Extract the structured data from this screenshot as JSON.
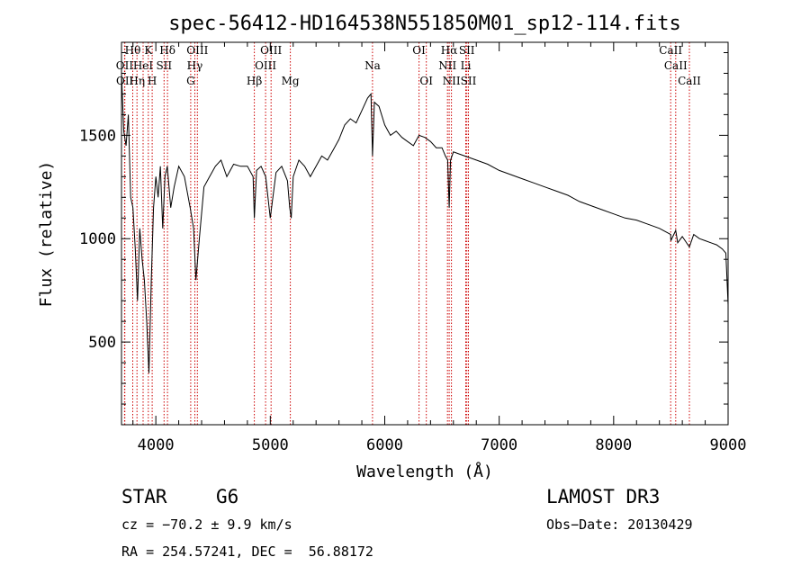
{
  "chart_data": {
    "type": "line",
    "title": "spec-56412-HD164538N551850M01_sp12-114.fits",
    "xlabel": "Wavelength (Å)",
    "ylabel": "Flux (relative)",
    "xlim": [
      3700,
      9000
    ],
    "ylim": [
      100,
      1950
    ],
    "xticks": [
      4000,
      5000,
      6000,
      7000,
      8000,
      9000
    ],
    "yticks": [
      500,
      1000,
      1500
    ],
    "series": [
      {
        "name": "spectrum",
        "x": [
          3700,
          3720,
          3740,
          3760,
          3780,
          3800,
          3820,
          3840,
          3860,
          3880,
          3900,
          3920,
          3940,
          3960,
          3980,
          4000,
          4020,
          4040,
          4060,
          4080,
          4100,
          4130,
          4160,
          4200,
          4250,
          4300,
          4330,
          4350,
          4380,
          4420,
          4470,
          4520,
          4570,
          4620,
          4680,
          4740,
          4800,
          4850,
          4861,
          4880,
          4920,
          4960,
          5000,
          5050,
          5100,
          5150,
          5170,
          5183,
          5200,
          5250,
          5300,
          5350,
          5400,
          5450,
          5500,
          5550,
          5600,
          5650,
          5700,
          5750,
          5800,
          5850,
          5880,
          5893,
          5910,
          5950,
          6000,
          6050,
          6100,
          6150,
          6200,
          6250,
          6300,
          6350,
          6400,
          6450,
          6500,
          6530,
          6550,
          6563,
          6575,
          6600,
          6650,
          6700,
          6750,
          6800,
          6900,
          7000,
          7100,
          7200,
          7300,
          7400,
          7500,
          7600,
          7700,
          7800,
          7900,
          8000,
          8100,
          8200,
          8300,
          8400,
          8498,
          8500,
          8542,
          8560,
          8600,
          8662,
          8700,
          8750,
          8800,
          8850,
          8900,
          8950,
          8980,
          9000
        ],
        "values": [
          1800,
          1520,
          1450,
          1600,
          1200,
          1150,
          950,
          700,
          1050,
          900,
          800,
          600,
          350,
          800,
          1150,
          1300,
          1200,
          1350,
          1050,
          1300,
          1350,
          1150,
          1250,
          1350,
          1300,
          1150,
          1050,
          800,
          1000,
          1250,
          1300,
          1350,
          1380,
          1300,
          1360,
          1350,
          1350,
          1300,
          1100,
          1330,
          1350,
          1300,
          1100,
          1320,
          1350,
          1280,
          1150,
          1100,
          1300,
          1380,
          1350,
          1300,
          1350,
          1400,
          1380,
          1430,
          1480,
          1550,
          1580,
          1560,
          1620,
          1680,
          1700,
          1400,
          1660,
          1640,
          1550,
          1500,
          1520,
          1490,
          1470,
          1450,
          1500,
          1490,
          1470,
          1440,
          1440,
          1400,
          1380,
          1150,
          1380,
          1420,
          1410,
          1400,
          1390,
          1380,
          1360,
          1330,
          1310,
          1290,
          1270,
          1250,
          1230,
          1210,
          1180,
          1160,
          1140,
          1120,
          1100,
          1090,
          1070,
          1050,
          1020,
          990,
          1040,
          980,
          1010,
          960,
          1020,
          1000,
          990,
          980,
          970,
          950,
          930,
          680
        ]
      }
    ],
    "line_labels": [
      {
        "text": "Hθ",
        "wl": 3798,
        "row": 1
      },
      {
        "text": "OII",
        "wl": 3727,
        "row": 2
      },
      {
        "text": "OII",
        "wl": 3729,
        "row": 3
      },
      {
        "text": "K",
        "wl": 3934,
        "row": 1
      },
      {
        "text": "HeI",
        "wl": 3889,
        "row": 2
      },
      {
        "text": "Hη",
        "wl": 3835,
        "row": 3
      },
      {
        "text": "Hδ",
        "wl": 4102,
        "row": 1
      },
      {
        "text": "SII",
        "wl": 4072,
        "row": 2
      },
      {
        "text": "H",
        "wl": 3968,
        "row": 3
      },
      {
        "text": "OIII",
        "wl": 4363,
        "row": 1
      },
      {
        "text": "Hγ",
        "wl": 4341,
        "row": 2
      },
      {
        "text": "G",
        "wl": 4305,
        "row": 3
      },
      {
        "text": "OIII",
        "wl": 5007,
        "row": 1
      },
      {
        "text": "OIII",
        "wl": 4959,
        "row": 2
      },
      {
        "text": "Hβ",
        "wl": 4861,
        "row": 3
      },
      {
        "text": "Mg",
        "wl": 5175,
        "row": 3
      },
      {
        "text": "Na",
        "wl": 5893,
        "row": 2
      },
      {
        "text": "OI",
        "wl": 6300,
        "row": 1
      },
      {
        "text": "OI",
        "wl": 6363,
        "row": 3
      },
      {
        "text": "Hα",
        "wl": 6563,
        "row": 1
      },
      {
        "text": "NII",
        "wl": 6548,
        "row": 2
      },
      {
        "text": "NII",
        "wl": 6583,
        "row": 3
      },
      {
        "text": "SII",
        "wl": 6717,
        "row": 1
      },
      {
        "text": "Li",
        "wl": 6708,
        "row": 2
      },
      {
        "text": "SII",
        "wl": 6731,
        "row": 3
      },
      {
        "text": "CaII",
        "wl": 8498,
        "row": 1
      },
      {
        "text": "CaII",
        "wl": 8542,
        "row": 2
      },
      {
        "text": "CaII",
        "wl": 8662,
        "row": 3
      }
    ],
    "line_markers": [
      3727,
      3729,
      3798,
      3835,
      3889,
      3934,
      3968,
      4072,
      4102,
      4305,
      4341,
      4363,
      4861,
      4959,
      5007,
      5175,
      5893,
      6300,
      6363,
      6548,
      6563,
      6583,
      6708,
      6717,
      6731,
      8498,
      8542,
      8662
    ],
    "marker_color": "#cc0000",
    "line_color": "#000000"
  },
  "info": {
    "object_class": "STAR",
    "subclass": "G6",
    "survey": "LAMOST DR3",
    "cz": "cz = −70.2 ± 9.9 km/s",
    "obs_date": "Obs−Date: 20130429",
    "coords": "RA = 254.57241, DEC =  56.88172"
  }
}
